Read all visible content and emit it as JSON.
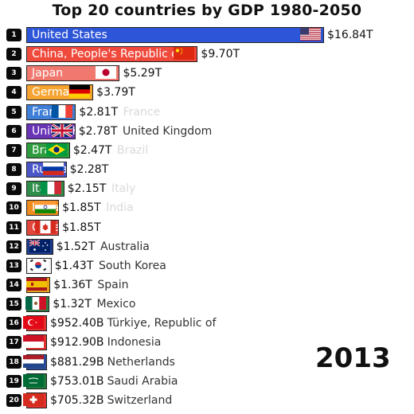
{
  "chart_data": {
    "type": "bar",
    "title": "Top 20 countries by GDP 1980-2050",
    "year": "2013",
    "unit_note": "values in trillions of US dollars",
    "bars": [
      {
        "rank": "1",
        "country": "United States",
        "value": 16.84,
        "value_label": "$16.84T",
        "color": "#2d55d8",
        "flag": "us-flag-icon"
      },
      {
        "rank": "2",
        "country": "China, People's Republic of",
        "value": 9.7,
        "value_label": "$9.70T",
        "color": "#f04a3c",
        "flag": "china-flag-icon"
      },
      {
        "rank": "3",
        "country": "Japan",
        "value": 5.29,
        "value_label": "$5.29T",
        "color": "#f0786e",
        "flag": "japan-flag-icon"
      },
      {
        "rank": "4",
        "country": "Germany",
        "value": 3.79,
        "value_label": "$3.79T",
        "color": "#f5a431",
        "flag": "germany-flag-icon"
      },
      {
        "rank": "5",
        "country": "France",
        "value": 2.81,
        "value_label": "$2.81T",
        "color": "#3f7fd8",
        "flag": "france-flag-icon"
      },
      {
        "rank": "6",
        "country": "United Kingdom",
        "value": 2.78,
        "value_label": "$2.78T",
        "color": "#6a34b7",
        "flag": "uk-flag-icon"
      },
      {
        "rank": "7",
        "country": "Brazil",
        "value": 2.47,
        "value_label": "$2.47T",
        "color": "#2e9c3e",
        "flag": "brazil-flag-icon"
      },
      {
        "rank": "8",
        "country": "Russian Federation",
        "value": 2.28,
        "value_label": "$2.28T",
        "color": "#4a55c8",
        "flag": "russia-flag-icon"
      },
      {
        "rank": "9",
        "country": "Italy",
        "value": 2.15,
        "value_label": "$2.15T",
        "color": "#2f8f4a",
        "flag": "italy-flag-icon"
      },
      {
        "rank": "10",
        "country": "India",
        "value": 1.85,
        "value_label": "$1.85T",
        "color": "#ef8a1e",
        "flag": "india-flag-icon"
      },
      {
        "rank": "11",
        "country": "Canada",
        "value": 1.85,
        "value_label": "$1.85T",
        "color": "#e2473e",
        "flag": "canada-flag-icon"
      },
      {
        "rank": "12",
        "country": "Australia",
        "value": 1.52,
        "value_label": "$1.52T",
        "color": "#1f3c8c",
        "flag": "australia-flag-icon"
      },
      {
        "rank": "13",
        "country": "South Korea",
        "value": 1.43,
        "value_label": "$1.43T",
        "color": "#f2f2f2",
        "flag": "south-korea-flag-icon"
      },
      {
        "rank": "14",
        "country": "Spain",
        "value": 1.36,
        "value_label": "$1.36T",
        "color": "#e8a21c",
        "flag": "spain-flag-icon"
      },
      {
        "rank": "15",
        "country": "Mexico",
        "value": 1.32,
        "value_label": "$1.32T",
        "color": "#2f7d43",
        "flag": "mexico-flag-icon"
      },
      {
        "rank": "16",
        "country": "Türkiye, Republic of",
        "value": 0.9524,
        "value_label": "$952.40B",
        "color": "#e3322d",
        "flag": "turkey-flag-icon"
      },
      {
        "rank": "17",
        "country": "Indonesia",
        "value": 0.9129,
        "value_label": "$912.90B",
        "color": "#e3322d",
        "flag": "indonesia-flag-icon"
      },
      {
        "rank": "18",
        "country": "Netherlands",
        "value": 0.88129,
        "value_label": "$881.29B",
        "color": "#2a4a9c",
        "flag": "netherlands-flag-icon"
      },
      {
        "rank": "19",
        "country": "Saudi Arabia",
        "value": 0.75301,
        "value_label": "$753.01B",
        "color": "#1f7a3c",
        "flag": "saudi-arabia-flag-icon"
      },
      {
        "rank": "20",
        "country": "Switzerland",
        "value": 0.70532,
        "value_label": "$705.32B",
        "color": "#e3322d",
        "flag": "switzerland-flag-icon"
      }
    ],
    "inside_labels": {
      "1": "United States",
      "2": "China, People's Republic of",
      "3": "Japan",
      "4": "Germany",
      "5": "France",
      "6": "United Kingdom",
      "7": "Brazil",
      "8": "Russian Federation",
      "9": "Italy",
      "10": "India",
      "11": "Canada"
    },
    "faded_outside_names": [
      "France",
      "Brazil",
      "Italy",
      "India"
    ]
  }
}
